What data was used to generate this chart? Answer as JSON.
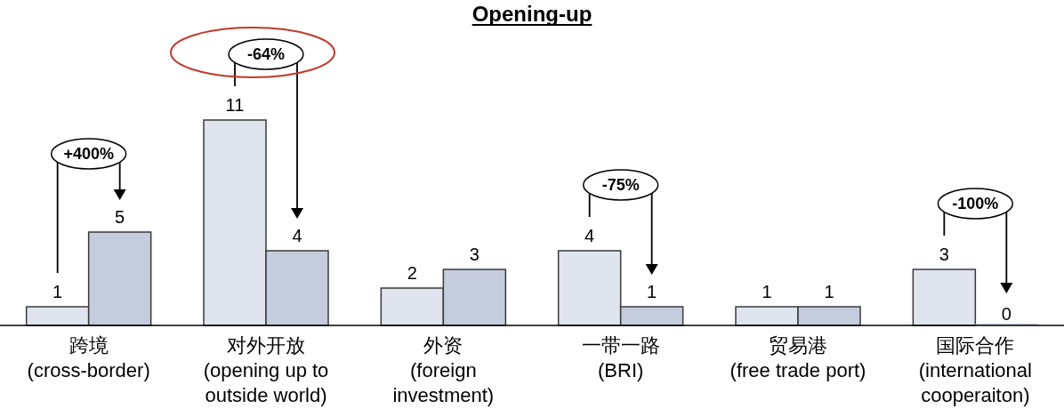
{
  "chart_data": {
    "type": "bar",
    "title": "Opening-up",
    "categories": [
      "跨境\n(cross-border)",
      "对外开放\n(opening up to\noutside world)",
      "外资\n(foreign\ninvestment)",
      "一带一路\n(BRI)",
      "贸易港\n(free trade port)",
      "国际合作\n(international\ncooperaiton)"
    ],
    "series": [
      {
        "color": "#dfe4ee",
        "values": [
          1,
          11,
          2,
          4,
          1,
          3
        ]
      },
      {
        "color": "#c4ccdd",
        "values": [
          5,
          4,
          3,
          1,
          1,
          0
        ]
      }
    ],
    "data_labels": true,
    "annotations": [
      "+400%",
      "-64%",
      "-75%",
      "-100%"
    ]
  }
}
